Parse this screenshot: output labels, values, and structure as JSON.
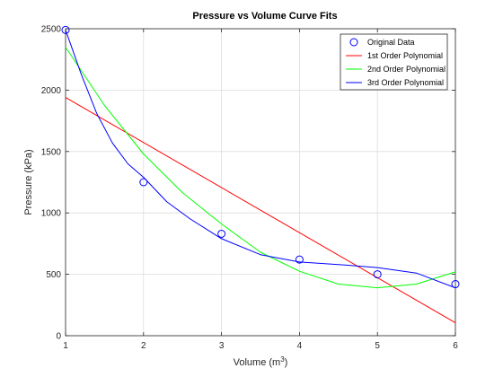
{
  "chart_data": {
    "type": "line",
    "title": "Pressure vs Volume Curve Fits",
    "xlabel": "Volume (m",
    "xlabel_sup": "3",
    "xlabel_end": ")",
    "ylabel": "Pressure (kPa)",
    "xlim": [
      1,
      6
    ],
    "ylim": [
      0,
      2500
    ],
    "xticks": [
      "1",
      "2",
      "3",
      "4",
      "5",
      "6"
    ],
    "yticks": [
      "0",
      "500",
      "1000",
      "1500",
      "2000",
      "2500"
    ],
    "grid": true,
    "legend_position": "top-right",
    "series": [
      {
        "name": "Original Data",
        "kind": "scatter",
        "marker": "circle",
        "color": "#0000ff",
        "x": [
          1,
          2,
          3,
          4,
          5,
          6
        ],
        "y": [
          2490,
          1250,
          830,
          620,
          500,
          420
        ]
      },
      {
        "name": "1st Order Polynomial",
        "kind": "line",
        "color": "#ff0000",
        "x": [
          1,
          6
        ],
        "y": [
          1940,
          105
        ]
      },
      {
        "name": "2nd Order Polynomial",
        "kind": "line",
        "color": "#00ff00",
        "x": [
          1,
          1.5,
          2,
          2.5,
          3,
          3.5,
          4,
          4.5,
          5,
          5.5,
          6
        ],
        "y": [
          2350,
          1875,
          1480,
          1165,
          910,
          680,
          525,
          420,
          390,
          420,
          520
        ]
      },
      {
        "name": "3rd Order Polynomial",
        "kind": "line",
        "color": "#0000ff",
        "x": [
          1,
          1.2,
          1.4,
          1.6,
          1.8,
          2,
          2.3,
          2.6,
          3,
          3.5,
          4,
          4.5,
          5,
          5.5,
          6
        ],
        "y": [
          2490,
          2130,
          1810,
          1570,
          1400,
          1290,
          1090,
          950,
          790,
          660,
          600,
          580,
          555,
          510,
          390
        ]
      }
    ]
  }
}
